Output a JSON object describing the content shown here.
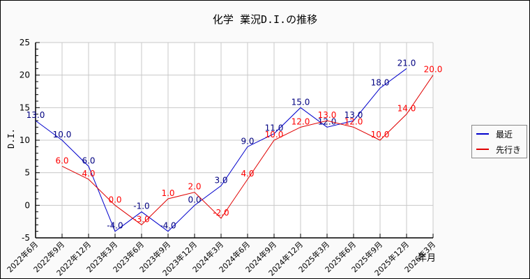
{
  "chart_data": {
    "type": "line",
    "title": "化学 業況D.I.の推移",
    "xlabel": "年月",
    "ylabel": "D.I.",
    "ylim": [
      -5,
      25
    ],
    "yticks": [
      -5,
      0,
      5,
      10,
      15,
      20,
      25
    ],
    "grid": true,
    "legend_position": "right",
    "categories": [
      "2022年6月",
      "2022年9月",
      "2022年12月",
      "2023年3月",
      "2023年6月",
      "2023年9月",
      "2023年12月",
      "2024年3月",
      "2024年6月",
      "2024年9月",
      "2024年12月",
      "2025年3月",
      "2025年6月",
      "2025年9月",
      "2025年12月",
      "2026年3月"
    ],
    "series": [
      {
        "name": "最近",
        "color": "#0000cc",
        "label_color": "#000080",
        "values": [
          13.0,
          10.0,
          6.0,
          -4.0,
          -1.0,
          -4.0,
          0.0,
          3.0,
          9.0,
          11.0,
          15.0,
          12.0,
          13.0,
          18.0,
          21.0,
          null
        ]
      },
      {
        "name": "先行き",
        "color": "#e00000",
        "label_color": "#ff0000",
        "values": [
          null,
          6.0,
          4.0,
          0.0,
          -3.0,
          1.0,
          2.0,
          -2.0,
          4.0,
          10.0,
          12.0,
          13.0,
          12.0,
          10.0,
          14.0,
          20.0
        ]
      }
    ]
  },
  "legend": {
    "items": [
      {
        "label": "最近",
        "color": "#0000cc"
      },
      {
        "label": "先行き",
        "color": "#e00000"
      }
    ]
  }
}
